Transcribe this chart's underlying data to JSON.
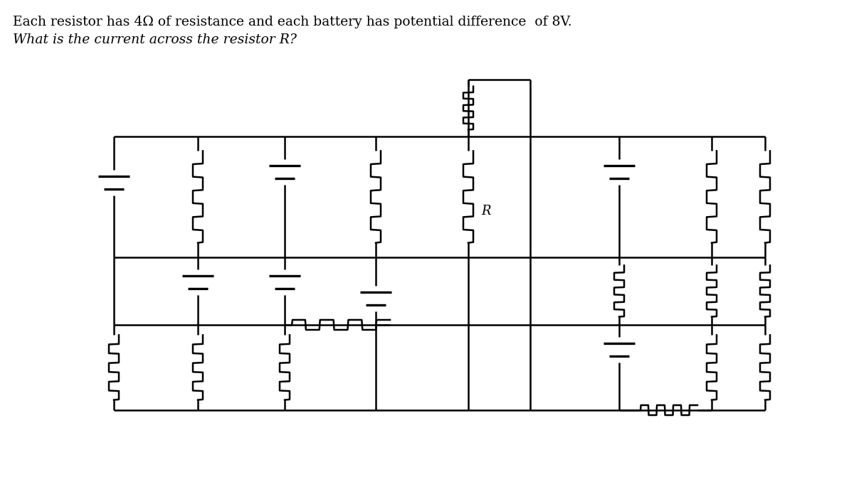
{
  "title_line1": "Each resistor has 4Ω of resistance and each battery has potential difference  of 8V.",
  "title_line2": "What is the current across the resistor R?",
  "bg_color": "#ffffff",
  "line_color": "#000000",
  "text_color": "#000000",
  "fig_width": 12.0,
  "fig_height": 7.02,
  "R_label": "R",
  "lw": 1.8,
  "lw_bat": 2.4
}
